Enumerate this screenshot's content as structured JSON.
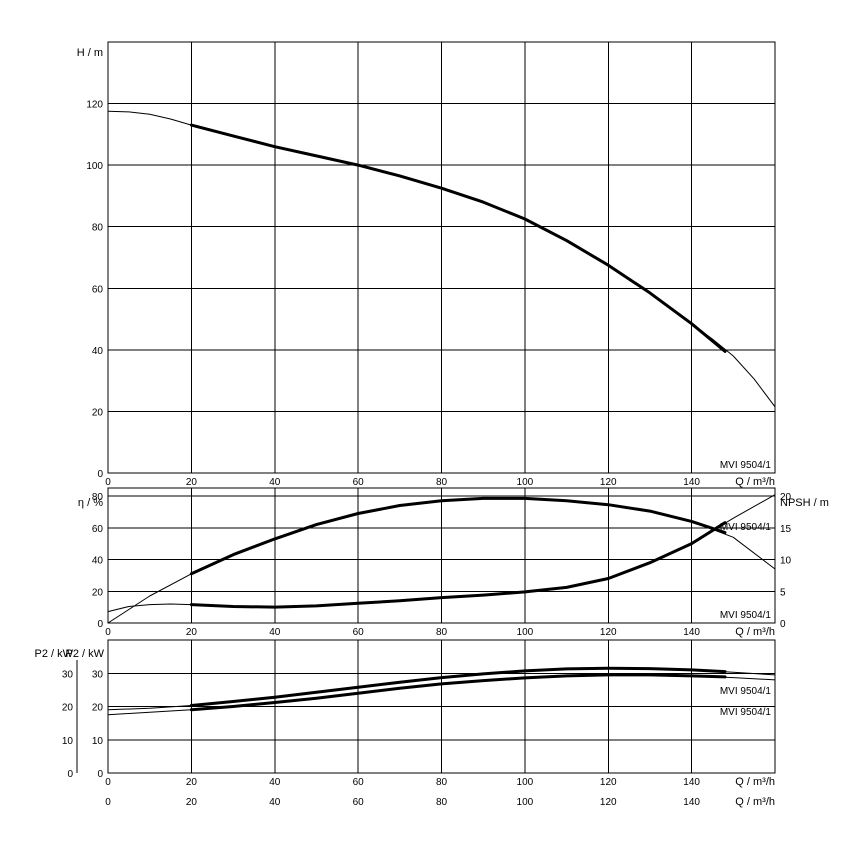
{
  "chart_data": [
    {
      "type": "line",
      "panel": "head",
      "ylabel": "H / m",
      "xlabel": "Q / m³/h",
      "xlim": [
        0,
        160
      ],
      "ylim": [
        0,
        140
      ],
      "xticks": [
        0,
        20,
        40,
        60,
        80,
        100,
        120,
        140
      ],
      "yticks": [
        0,
        20,
        40,
        60,
        80,
        100,
        120
      ],
      "grid": true,
      "series_label": "MVI 9504/1",
      "series": [
        {
          "role": "head-full-range",
          "style": "thin",
          "x": [
            0,
            5,
            10,
            15,
            20,
            30,
            40,
            50,
            60,
            70,
            80,
            90,
            100,
            110,
            120,
            130,
            140,
            145,
            150,
            155,
            160
          ],
          "y": [
            117.5,
            117.3,
            116.5,
            115,
            113,
            109.5,
            106,
            103,
            100,
            96.5,
            92.5,
            88,
            82.5,
            75.5,
            67.5,
            58.5,
            48.5,
            43.5,
            38,
            30.5,
            21.5
          ]
        },
        {
          "role": "head-operating-range",
          "style": "bold",
          "x": [
            20,
            30,
            40,
            50,
            60,
            70,
            80,
            90,
            100,
            110,
            120,
            130,
            140,
            148
          ],
          "y": [
            113,
            109.5,
            106,
            103,
            100,
            96.5,
            92.5,
            88,
            82.5,
            75.5,
            67.5,
            58.5,
            48.5,
            39.5
          ]
        }
      ]
    },
    {
      "type": "line",
      "panel": "efficiency-npsh",
      "ylabel": "η / %",
      "ylabel_right": "NPSH / m",
      "xlabel": "Q / m³/h",
      "xlim": [
        0,
        160
      ],
      "ylim": [
        0,
        80
      ],
      "ylim_right": [
        0,
        20
      ],
      "xticks": [
        0,
        20,
        40,
        60,
        80,
        100,
        120,
        140
      ],
      "yticks": [
        0,
        20,
        40,
        60,
        80
      ],
      "yticks_right": [
        0,
        5,
        10,
        15,
        20
      ],
      "grid": true,
      "series_labels": [
        "MVI 9504/1",
        "MVI 9504/1"
      ],
      "series": [
        {
          "role": "efficiency-full-range",
          "axis": "left",
          "style": "thin",
          "x": [
            0,
            10,
            20,
            30,
            40,
            50,
            60,
            70,
            80,
            90,
            100,
            110,
            120,
            130,
            140,
            150,
            160
          ],
          "y": [
            0,
            17,
            31,
            43,
            53,
            62,
            69,
            74,
            77,
            78.5,
            78.5,
            77,
            74.5,
            70.5,
            64,
            54,
            34
          ]
        },
        {
          "role": "efficiency-operating-range",
          "axis": "left",
          "style": "bold",
          "x": [
            20,
            30,
            40,
            50,
            60,
            70,
            80,
            90,
            100,
            110,
            120,
            130,
            140,
            148
          ],
          "y": [
            31,
            43,
            53,
            62,
            69,
            74,
            77,
            78.5,
            78.5,
            77,
            74.5,
            70.5,
            64,
            57
          ]
        },
        {
          "role": "npsh-full-range",
          "axis": "right",
          "style": "thin",
          "x": [
            0,
            5,
            10,
            15,
            20,
            30,
            40,
            50,
            60,
            70,
            80,
            90,
            100,
            110,
            120,
            130,
            140,
            150,
            160
          ],
          "y": [
            1.8,
            2.6,
            2.9,
            3,
            2.9,
            2.6,
            2.5,
            2.7,
            3.1,
            3.5,
            4,
            4.4,
            4.9,
            5.6,
            7,
            9.5,
            12.5,
            16.5,
            20.2
          ]
        },
        {
          "role": "npsh-operating-range",
          "axis": "right",
          "style": "bold",
          "x": [
            20,
            30,
            40,
            50,
            60,
            70,
            80,
            90,
            100,
            110,
            120,
            130,
            140,
            148
          ],
          "y": [
            2.9,
            2.6,
            2.5,
            2.7,
            3.1,
            3.5,
            4,
            4.4,
            4.9,
            5.6,
            7,
            9.5,
            12.5,
            15.8
          ]
        }
      ]
    },
    {
      "type": "line",
      "panel": "power",
      "ylabel_outer": "P2 / kW",
      "ylabel_inner": "P2 / kW",
      "xlabel": "Q / m³/h",
      "xlim": [
        0,
        160
      ],
      "ylim": [
        0,
        40
      ],
      "yticks_outer": [
        0,
        10,
        20,
        30
      ],
      "yticks_inner": [
        0,
        10,
        20,
        30
      ],
      "xticks": [
        0,
        20,
        40,
        60,
        80,
        100,
        120,
        140
      ],
      "grid": true,
      "series_labels": [
        "MVI 9504/1",
        "MVI 9504/1"
      ],
      "series": [
        {
          "role": "p2-upper-full-range",
          "style": "thin",
          "x": [
            0,
            10,
            20,
            30,
            40,
            50,
            60,
            70,
            80,
            90,
            100,
            110,
            120,
            130,
            140,
            150,
            160
          ],
          "y": [
            19,
            19.5,
            20.3,
            21.5,
            22.8,
            24.3,
            25.8,
            27.3,
            28.7,
            29.8,
            30.7,
            31.3,
            31.5,
            31.4,
            31,
            30.3,
            29.5
          ]
        },
        {
          "role": "p2-upper-operating-range",
          "style": "bold",
          "x": [
            20,
            30,
            40,
            50,
            60,
            70,
            80,
            90,
            100,
            110,
            120,
            130,
            140,
            148
          ],
          "y": [
            20.3,
            21.5,
            22.8,
            24.3,
            25.8,
            27.3,
            28.7,
            29.8,
            30.7,
            31.3,
            31.5,
            31.4,
            31,
            30.5
          ]
        },
        {
          "role": "p2-lower-full-range",
          "style": "thin",
          "x": [
            0,
            10,
            20,
            30,
            40,
            50,
            60,
            70,
            80,
            90,
            100,
            110,
            120,
            130,
            140,
            150,
            160
          ],
          "y": [
            17.5,
            18.3,
            19,
            20,
            21.2,
            22.5,
            24,
            25.5,
            26.8,
            27.8,
            28.6,
            29.2,
            29.5,
            29.5,
            29.2,
            28.7,
            28
          ]
        },
        {
          "role": "p2-lower-operating-range",
          "style": "bold",
          "x": [
            20,
            30,
            40,
            50,
            60,
            70,
            80,
            90,
            100,
            110,
            120,
            130,
            140,
            148
          ],
          "y": [
            19,
            20,
            21.2,
            22.5,
            24,
            25.5,
            26.8,
            27.8,
            28.6,
            29.2,
            29.5,
            29.5,
            29.2,
            28.9
          ]
        }
      ]
    }
  ]
}
